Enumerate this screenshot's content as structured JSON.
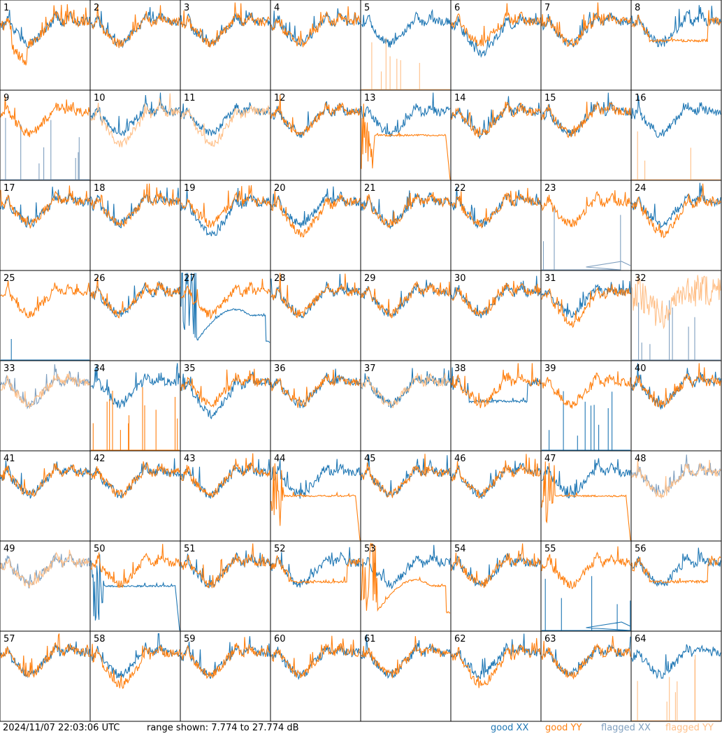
{
  "footer": {
    "timestamp": "2024/11/07 22:03:06 UTC",
    "range": "range shown: 7.774 to 27.774 dB",
    "legend": [
      {
        "key": "good_xx",
        "label": "good XX",
        "color": "#1f77b4"
      },
      {
        "key": "good_yy",
        "label": "good YY",
        "color": "#ff7f0e"
      },
      {
        "key": "flagged_xx",
        "label": "flagged XX",
        "color": "#7f9fbf"
      },
      {
        "key": "flagged_yy",
        "label": "flagged YY",
        "color": "#ffbf87"
      }
    ]
  },
  "chart_data": {
    "type": "line",
    "layout": "8x8 small multiples",
    "ylim": [
      7.774,
      27.774
    ],
    "y_unit": "dB",
    "series_colors": {
      "good_xx": "#1f77b4",
      "good_yy": "#ff7f0e",
      "flagged_xx": "#7f9fbf",
      "flagged_yy": "#ffbf87"
    },
    "panels": [
      {
        "label": "1",
        "xx": "good",
        "yy": "good",
        "xx_shape": "normal",
        "yy_shape": "dip"
      },
      {
        "label": "2",
        "xx": "good",
        "yy": "good",
        "xx_shape": "normal",
        "yy_shape": "normal"
      },
      {
        "label": "3",
        "xx": "good",
        "yy": "good",
        "xx_shape": "normal",
        "yy_shape": "normal"
      },
      {
        "label": "4",
        "xx": "good",
        "yy": "good",
        "xx_shape": "normal",
        "yy_shape": "normal"
      },
      {
        "label": "5",
        "xx": "good",
        "yy": "flagged",
        "xx_shape": "normal",
        "yy_shape": "spikes"
      },
      {
        "label": "6",
        "xx": "good",
        "yy": "good",
        "xx_shape": "low",
        "yy_shape": "normal"
      },
      {
        "label": "7",
        "xx": "good",
        "yy": "good",
        "xx_shape": "normal",
        "yy_shape": "normal"
      },
      {
        "label": "8",
        "xx": "good",
        "yy": "good",
        "xx_shape": "normal",
        "yy_shape": "flat"
      },
      {
        "label": "9",
        "xx": "flagged",
        "yy": "good",
        "xx_shape": "spikes",
        "yy_shape": "normal"
      },
      {
        "label": "10",
        "xx": "good",
        "yy": "flagged",
        "xx_shape": "normal",
        "yy_shape": "low"
      },
      {
        "label": "11",
        "xx": "good",
        "yy": "flagged",
        "xx_shape": "normal",
        "yy_shape": "low"
      },
      {
        "label": "12",
        "xx": "good",
        "yy": "good",
        "xx_shape": "normal",
        "yy_shape": "normal"
      },
      {
        "label": "13",
        "xx": "good",
        "yy": "good",
        "xx_shape": "normal",
        "yy_shape": "decay"
      },
      {
        "label": "14",
        "xx": "good",
        "yy": "good",
        "xx_shape": "normal",
        "yy_shape": "normal"
      },
      {
        "label": "15",
        "xx": "good",
        "yy": "good",
        "xx_shape": "normal",
        "yy_shape": "normal"
      },
      {
        "label": "16",
        "xx": "good",
        "yy": "flagged",
        "xx_shape": "normal",
        "yy_shape": "spikes"
      },
      {
        "label": "17",
        "xx": "good",
        "yy": "good",
        "xx_shape": "normal",
        "yy_shape": "normal"
      },
      {
        "label": "18",
        "xx": "good",
        "yy": "good",
        "xx_shape": "normal",
        "yy_shape": "normal"
      },
      {
        "label": "19",
        "xx": "good",
        "yy": "good",
        "xx_shape": "low",
        "yy_shape": "normal"
      },
      {
        "label": "20",
        "xx": "good",
        "yy": "good",
        "xx_shape": "normal",
        "yy_shape": "low"
      },
      {
        "label": "21",
        "xx": "good",
        "yy": "good",
        "xx_shape": "normal",
        "yy_shape": "normal"
      },
      {
        "label": "22",
        "xx": "good",
        "yy": "good",
        "xx_shape": "normal",
        "yy_shape": "normal"
      },
      {
        "label": "23",
        "xx": "flagged",
        "yy": "good",
        "xx_shape": "spikes_tail",
        "yy_shape": "normal"
      },
      {
        "label": "24",
        "xx": "good",
        "yy": "good",
        "xx_shape": "normal",
        "yy_shape": "low"
      },
      {
        "label": "25",
        "xx": "good",
        "yy": "good",
        "xx_shape": "spike1",
        "yy_shape": "normal"
      },
      {
        "label": "26",
        "xx": "good",
        "yy": "good",
        "xx_shape": "normal",
        "yy_shape": "normal"
      },
      {
        "label": "27",
        "xx": "good",
        "yy": "good",
        "xx_shape": "hump",
        "yy_shape": "normal"
      },
      {
        "label": "28",
        "xx": "good",
        "yy": "good",
        "xx_shape": "normal",
        "yy_shape": "normal"
      },
      {
        "label": "29",
        "xx": "good",
        "yy": "good",
        "xx_shape": "normal",
        "yy_shape": "normal"
      },
      {
        "label": "30",
        "xx": "good",
        "yy": "good",
        "xx_shape": "normal",
        "yy_shape": "normal"
      },
      {
        "label": "31",
        "xx": "good",
        "yy": "good",
        "xx_shape": "normal",
        "yy_shape": "low"
      },
      {
        "label": "32",
        "xx": "flagged",
        "yy": "flagged",
        "xx_shape": "spikes",
        "yy_shape": "noisy"
      },
      {
        "label": "33",
        "xx": "flagged",
        "yy": "flagged",
        "xx_shape": "normal",
        "yy_shape": "normal"
      },
      {
        "label": "34",
        "xx": "good",
        "yy": "good",
        "xx_shape": "normal",
        "yy_shape": "spikes"
      },
      {
        "label": "35",
        "xx": "good",
        "yy": "good",
        "xx_shape": "low",
        "yy_shape": "normal"
      },
      {
        "label": "36",
        "xx": "good",
        "yy": "good",
        "xx_shape": "normal",
        "yy_shape": "normal"
      },
      {
        "label": "37",
        "xx": "good",
        "yy": "flagged",
        "xx_shape": "normal",
        "yy_shape": "normal"
      },
      {
        "label": "38",
        "xx": "good",
        "yy": "good",
        "xx_shape": "flat",
        "yy_shape": "normal"
      },
      {
        "label": "39",
        "xx": "good",
        "yy": "good",
        "xx_shape": "spikes",
        "yy_shape": "normal"
      },
      {
        "label": "40",
        "xx": "good",
        "yy": "good",
        "xx_shape": "normal",
        "yy_shape": "normal"
      },
      {
        "label": "41",
        "xx": "good",
        "yy": "good",
        "xx_shape": "normal",
        "yy_shape": "normal"
      },
      {
        "label": "42",
        "xx": "good",
        "yy": "good",
        "xx_shape": "normal",
        "yy_shape": "normal"
      },
      {
        "label": "43",
        "xx": "good",
        "yy": "good",
        "xx_shape": "normal",
        "yy_shape": "normal"
      },
      {
        "label": "44",
        "xx": "good",
        "yy": "good",
        "xx_shape": "normal",
        "yy_shape": "decay"
      },
      {
        "label": "45",
        "xx": "good",
        "yy": "good",
        "xx_shape": "normal",
        "yy_shape": "normal"
      },
      {
        "label": "46",
        "xx": "good",
        "yy": "good",
        "xx_shape": "normal",
        "yy_shape": "normal"
      },
      {
        "label": "47",
        "xx": "good",
        "yy": "good",
        "xx_shape": "normal",
        "yy_shape": "decay"
      },
      {
        "label": "48",
        "xx": "flagged",
        "yy": "flagged",
        "xx_shape": "normal",
        "yy_shape": "normal"
      },
      {
        "label": "49",
        "xx": "flagged",
        "yy": "flagged",
        "xx_shape": "normal",
        "yy_shape": "normal"
      },
      {
        "label": "50",
        "xx": "good",
        "yy": "good",
        "xx_shape": "decay",
        "yy_shape": "normal"
      },
      {
        "label": "51",
        "xx": "good",
        "yy": "good",
        "xx_shape": "normal",
        "yy_shape": "normal"
      },
      {
        "label": "52",
        "xx": "good",
        "yy": "good",
        "xx_shape": "normal",
        "yy_shape": "flat"
      },
      {
        "label": "53",
        "xx": "good",
        "yy": "good",
        "xx_shape": "normal",
        "yy_shape": "hump"
      },
      {
        "label": "54",
        "xx": "good",
        "yy": "good",
        "xx_shape": "normal",
        "yy_shape": "normal"
      },
      {
        "label": "55",
        "xx": "good",
        "yy": "good",
        "xx_shape": "spikes_tail",
        "yy_shape": "normal"
      },
      {
        "label": "56",
        "xx": "good",
        "yy": "good",
        "xx_shape": "normal",
        "yy_shape": "flat"
      },
      {
        "label": "57",
        "xx": "good",
        "yy": "good",
        "xx_shape": "normal",
        "yy_shape": "normal"
      },
      {
        "label": "58",
        "xx": "good",
        "yy": "good",
        "xx_shape": "normal",
        "yy_shape": "low"
      },
      {
        "label": "59",
        "xx": "good",
        "yy": "good",
        "xx_shape": "normal",
        "yy_shape": "normal"
      },
      {
        "label": "60",
        "xx": "good",
        "yy": "good",
        "xx_shape": "normal",
        "yy_shape": "normal"
      },
      {
        "label": "61",
        "xx": "good",
        "yy": "good",
        "xx_shape": "normal",
        "yy_shape": "normal"
      },
      {
        "label": "62",
        "xx": "good",
        "yy": "good",
        "xx_shape": "normal",
        "yy_shape": "low"
      },
      {
        "label": "63",
        "xx": "good",
        "yy": "good",
        "xx_shape": "normal",
        "yy_shape": "normal"
      },
      {
        "label": "64",
        "xx": "good",
        "yy": "flagged",
        "xx_shape": "normal",
        "yy_shape": "spikes"
      }
    ]
  }
}
